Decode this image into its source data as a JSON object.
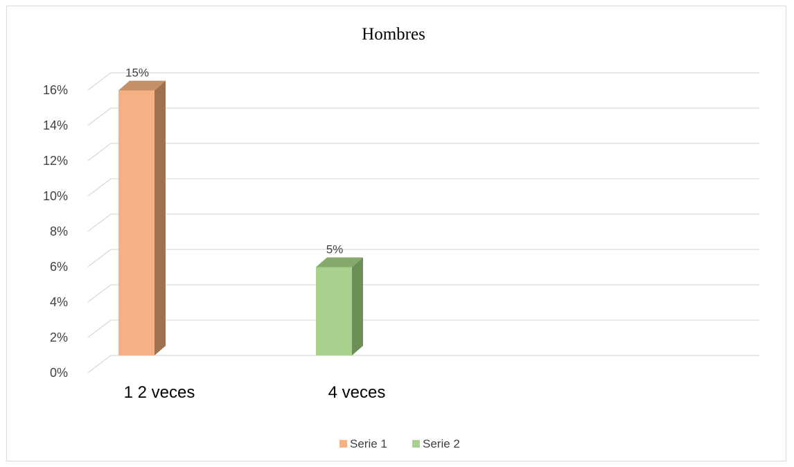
{
  "chart_data": {
    "type": "bar",
    "title": "Hombres",
    "categories": [
      "1 2 veces",
      "4 veces"
    ],
    "series": [
      {
        "name": "Serie 1",
        "values": [
          0.15,
          null
        ],
        "color": "#f4b183",
        "side_color": "#9e7250",
        "top_color": "#c4906a"
      },
      {
        "name": "Serie 2",
        "values": [
          null,
          0.05
        ],
        "color": "#a9d18e",
        "side_color": "#6e8e57",
        "top_color": "#85a86c"
      }
    ],
    "data_labels": [
      "15%",
      "5%"
    ],
    "y_ticks": [
      "0%",
      "2%",
      "4%",
      "6%",
      "8%",
      "10%",
      "12%",
      "14%",
      "16%"
    ],
    "ylim": [
      0,
      0.16
    ],
    "grid": true,
    "three_d": true,
    "legend_position": "bottom",
    "gridline_color": "#d9d9d9"
  }
}
